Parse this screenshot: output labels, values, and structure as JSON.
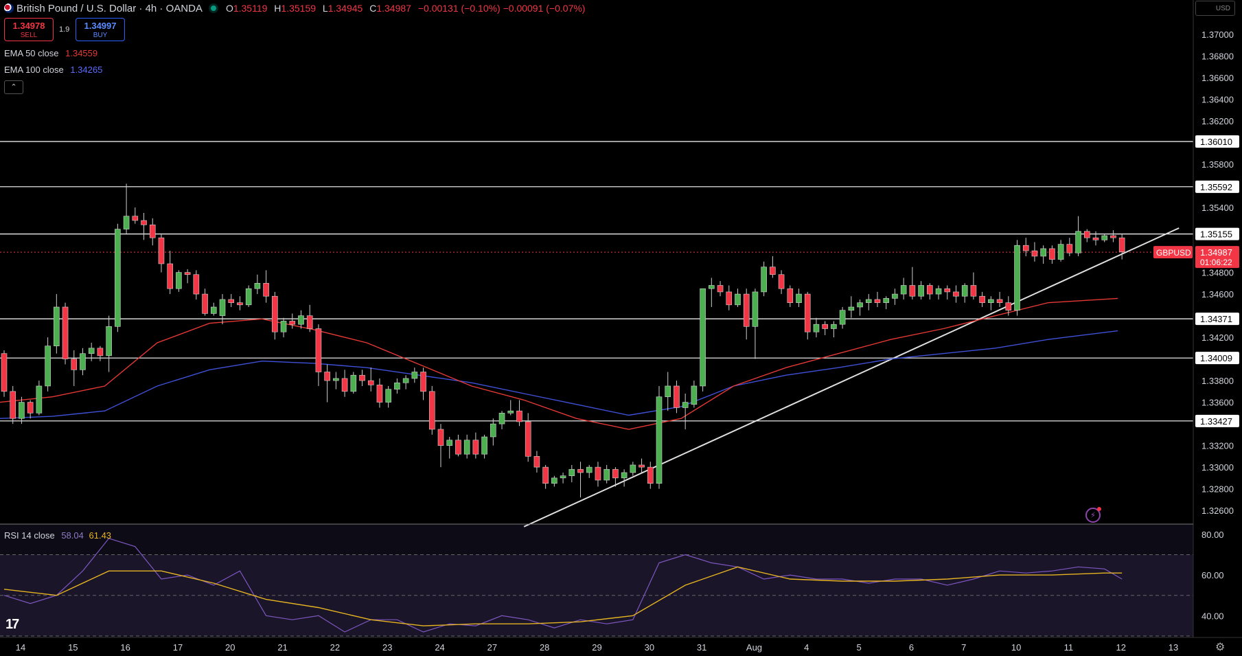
{
  "header": {
    "title": "British Pound / U.S. Dollar · 4h · OANDA",
    "ohlc": [
      {
        "k": "O",
        "v": "1.35119"
      },
      {
        "k": "H",
        "v": "1.35159"
      },
      {
        "k": "L",
        "v": "1.34945"
      },
      {
        "k": "C",
        "v": "1.34987"
      }
    ],
    "change": "−0.00131 (−0.10%) −0.00091 (−0.07%)"
  },
  "trade": {
    "sell_price": "1.34978",
    "sell_label": "SELL",
    "spread": "1.9",
    "buy_price": "1.34997",
    "buy_label": "BUY"
  },
  "indicators": {
    "ema50_label": "EMA 50 close",
    "ema50_value": "1.34559",
    "ema100_label": "EMA 100 close",
    "ema100_value": "1.34265",
    "rsi_label": "RSI 14 close",
    "rsi_value": "58.04",
    "rsi_ma_value": "61.43"
  },
  "currency": "USD",
  "colors": {
    "up": "#4caf50",
    "down": "#f23645",
    "ema50": "#e53935",
    "ema100": "#3f51d8",
    "rsi": "#7e57c2",
    "rsi_ma": "#e6b422",
    "hline": "#ffffff",
    "price_tag": "#f23645"
  },
  "chart_data": {
    "type": "candlestick",
    "symbol": "GBPUSD",
    "last_price": "1.34987",
    "countdown": "01:06:22",
    "ylim": [
      1.3248,
      1.3714
    ],
    "price_ticks": [
      "1.37000",
      "1.36800",
      "1.36600",
      "1.36400",
      "1.36200",
      "1.35800",
      "1.35400",
      "1.34800",
      "1.34600",
      "1.34200",
      "1.33800",
      "1.33600",
      "1.33200",
      "1.33000",
      "1.32800",
      "1.32600"
    ],
    "price_tick_values": [
      1.37,
      1.368,
      1.366,
      1.364,
      1.362,
      1.358,
      1.354,
      1.348,
      1.346,
      1.342,
      1.338,
      1.336,
      1.332,
      1.33,
      1.328,
      1.326
    ],
    "horizontal_levels": [
      1.3601,
      1.35592,
      1.35155,
      1.34371,
      1.34009,
      1.33427
    ],
    "horizontal_level_labels": [
      "1.36010",
      "1.35592",
      "1.35155",
      "1.34371",
      "1.34009",
      "1.33427"
    ],
    "x_labels": [
      "14",
      "15",
      "16",
      "17",
      "20",
      "21",
      "22",
      "23",
      "24",
      "27",
      "28",
      "29",
      "30",
      "31",
      "Aug",
      "4",
      "5",
      "6",
      "7",
      "10",
      "11",
      "12",
      "13"
    ],
    "x_label_index": [
      0,
      6,
      12,
      18,
      24,
      30,
      36,
      42,
      48,
      54,
      60,
      66,
      72,
      78,
      84,
      90,
      96,
      102,
      108,
      114,
      120,
      126,
      132
    ],
    "trendline": [
      {
        "i": 60,
        "p": 1.3245
      },
      {
        "i": 135,
        "p": 1.3521
      }
    ],
    "candles_ohlc": [
      [
        1.3405,
        1.3408,
        1.3365,
        1.337
      ],
      [
        1.337,
        1.3375,
        1.334,
        1.3345
      ],
      [
        1.3345,
        1.3365,
        1.334,
        1.336
      ],
      [
        1.336,
        1.3362,
        1.3345,
        1.335
      ],
      [
        1.335,
        1.338,
        1.3348,
        1.3375
      ],
      [
        1.3375,
        1.342,
        1.337,
        1.3412
      ],
      [
        1.3412,
        1.346,
        1.3405,
        1.3448
      ],
      [
        1.3448,
        1.3452,
        1.3395,
        1.34
      ],
      [
        1.34,
        1.3408,
        1.3375,
        1.339
      ],
      [
        1.339,
        1.341,
        1.3385,
        1.3405
      ],
      [
        1.3405,
        1.3415,
        1.3398,
        1.341
      ],
      [
        1.341,
        1.3412,
        1.3398,
        1.3403
      ],
      [
        1.3403,
        1.344,
        1.3388,
        1.343
      ],
      [
        1.343,
        1.3525,
        1.3425,
        1.352
      ],
      [
        1.352,
        1.3562,
        1.3515,
        1.3532
      ],
      [
        1.3532,
        1.354,
        1.3525,
        1.3528
      ],
      [
        1.3528,
        1.3535,
        1.351,
        1.3524
      ],
      [
        1.3524,
        1.353,
        1.3505,
        1.3512
      ],
      [
        1.3512,
        1.3515,
        1.348,
        1.3488
      ],
      [
        1.3488,
        1.35,
        1.346,
        1.3465
      ],
      [
        1.3465,
        1.3482,
        1.3462,
        1.348
      ],
      [
        1.348,
        1.3483,
        1.347,
        1.3478
      ],
      [
        1.3478,
        1.3482,
        1.3455,
        1.346
      ],
      [
        1.346,
        1.3465,
        1.344,
        1.3442
      ],
      [
        1.3442,
        1.3452,
        1.344,
        1.3448
      ],
      [
        1.344,
        1.346,
        1.3432,
        1.3455
      ],
      [
        1.3455,
        1.346,
        1.3448,
        1.3452
      ],
      [
        1.3452,
        1.3458,
        1.3445,
        1.345
      ],
      [
        1.345,
        1.3468,
        1.3448,
        1.3465
      ],
      [
        1.3465,
        1.3478,
        1.346,
        1.347
      ],
      [
        1.347,
        1.3482,
        1.3452,
        1.3458
      ],
      [
        1.3458,
        1.3462,
        1.3418,
        1.3425
      ],
      [
        1.3425,
        1.3438,
        1.342,
        1.3435
      ],
      [
        1.3435,
        1.3442,
        1.3428,
        1.3432
      ],
      [
        1.3432,
        1.3445,
        1.3428,
        1.344
      ],
      [
        1.344,
        1.345,
        1.3425,
        1.3428
      ],
      [
        1.3428,
        1.3432,
        1.3375,
        1.3388
      ],
      [
        1.3388,
        1.3395,
        1.336,
        1.338
      ],
      [
        1.338,
        1.3388,
        1.3372,
        1.3382
      ],
      [
        1.3382,
        1.339,
        1.3365,
        1.337
      ],
      [
        1.337,
        1.3388,
        1.3368,
        1.3385
      ],
      [
        1.3385,
        1.339,
        1.3375,
        1.338
      ],
      [
        1.338,
        1.3392,
        1.337,
        1.3376
      ],
      [
        1.3376,
        1.3382,
        1.3355,
        1.336
      ],
      [
        1.336,
        1.3375,
        1.3355,
        1.3372
      ],
      [
        1.3372,
        1.3382,
        1.3368,
        1.3378
      ],
      [
        1.3378,
        1.3385,
        1.3372,
        1.3382
      ],
      [
        1.3382,
        1.3392,
        1.3378,
        1.3388
      ],
      [
        1.3388,
        1.3392,
        1.3362,
        1.337
      ],
      [
        1.337,
        1.3375,
        1.333,
        1.3335
      ],
      [
        1.3335,
        1.334,
        1.33,
        1.332
      ],
      [
        1.332,
        1.3328,
        1.3308,
        1.3325
      ],
      [
        1.3325,
        1.333,
        1.331,
        1.3312
      ],
      [
        1.3312,
        1.333,
        1.3308,
        1.3325
      ],
      [
        1.3325,
        1.3332,
        1.3308,
        1.3312
      ],
      [
        1.3312,
        1.333,
        1.3308,
        1.3328
      ],
      [
        1.3328,
        1.3345,
        1.332,
        1.334
      ],
      [
        1.334,
        1.3352,
        1.3335,
        1.335
      ],
      [
        1.335,
        1.3362,
        1.3348,
        1.3352
      ],
      [
        1.3352,
        1.3362,
        1.3338,
        1.3342
      ],
      [
        1.3342,
        1.335,
        1.3305,
        1.331
      ],
      [
        1.331,
        1.3315,
        1.3295,
        1.33
      ],
      [
        1.33,
        1.3302,
        1.328,
        1.3285
      ],
      [
        1.3285,
        1.3292,
        1.3282,
        1.329
      ],
      [
        1.329,
        1.3295,
        1.3285,
        1.3292
      ],
      [
        1.3292,
        1.3302,
        1.3286,
        1.3298
      ],
      [
        1.3298,
        1.3305,
        1.3272,
        1.3295
      ],
      [
        1.3295,
        1.3302,
        1.329,
        1.33
      ],
      [
        1.33,
        1.3305,
        1.3282,
        1.3288
      ],
      [
        1.3288,
        1.3302,
        1.3285,
        1.3298
      ],
      [
        1.3298,
        1.33,
        1.3282,
        1.329
      ],
      [
        1.329,
        1.3298,
        1.3282,
        1.3295
      ],
      [
        1.3295,
        1.3305,
        1.3292,
        1.3302
      ],
      [
        1.3302,
        1.3308,
        1.3295,
        1.33
      ],
      [
        1.33,
        1.3305,
        1.328,
        1.3285
      ],
      [
        1.3285,
        1.3375,
        1.328,
        1.3365
      ],
      [
        1.3365,
        1.3388,
        1.3352,
        1.3375
      ],
      [
        1.3375,
        1.338,
        1.335,
        1.3355
      ],
      [
        1.3355,
        1.3368,
        1.3335,
        1.336
      ],
      [
        1.3358,
        1.338,
        1.3355,
        1.3375
      ],
      [
        1.3375,
        1.3452,
        1.337,
        1.3465
      ],
      [
        1.3465,
        1.3475,
        1.3448,
        1.3468
      ],
      [
        1.3468,
        1.3472,
        1.3458,
        1.3462
      ],
      [
        1.3462,
        1.3468,
        1.3445,
        1.345
      ],
      [
        1.345,
        1.3465,
        1.3448,
        1.346
      ],
      [
        1.346,
        1.3465,
        1.3418,
        1.343
      ],
      [
        1.343,
        1.3465,
        1.34,
        1.3462
      ],
      [
        1.3462,
        1.349,
        1.3458,
        1.3485
      ],
      [
        1.3485,
        1.3495,
        1.3475,
        1.3478
      ],
      [
        1.3478,
        1.3482,
        1.346,
        1.3465
      ],
      [
        1.3465,
        1.3468,
        1.3448,
        1.3452
      ],
      [
        1.3452,
        1.3465,
        1.3448,
        1.346
      ],
      [
        1.346,
        1.3462,
        1.3418,
        1.3425
      ],
      [
        1.3425,
        1.3438,
        1.342,
        1.3432
      ],
      [
        1.3432,
        1.3435,
        1.3422,
        1.3428
      ],
      [
        1.3428,
        1.3435,
        1.342,
        1.3432
      ],
      [
        1.3432,
        1.3448,
        1.3428,
        1.3445
      ],
      [
        1.3445,
        1.3458,
        1.3438,
        1.3448
      ],
      [
        1.3448,
        1.3455,
        1.344,
        1.3452
      ],
      [
        1.3452,
        1.346,
        1.3445,
        1.3455
      ],
      [
        1.3455,
        1.3462,
        1.3448,
        1.3452
      ],
      [
        1.3452,
        1.3458,
        1.3446,
        1.3456
      ],
      [
        1.3456,
        1.3465,
        1.345,
        1.346
      ],
      [
        1.346,
        1.3475,
        1.3455,
        1.3468
      ],
      [
        1.3468,
        1.3485,
        1.3455,
        1.3458
      ],
      [
        1.3458,
        1.3472,
        1.3455,
        1.3468
      ],
      [
        1.3468,
        1.347,
        1.3455,
        1.346
      ],
      [
        1.346,
        1.3468,
        1.3455,
        1.3465
      ],
      [
        1.3465,
        1.3468,
        1.3455,
        1.3462
      ],
      [
        1.3462,
        1.3468,
        1.3452,
        1.3458
      ],
      [
        1.3458,
        1.347,
        1.3452,
        1.3468
      ],
      [
        1.3468,
        1.348,
        1.3455,
        1.3458
      ],
      [
        1.3458,
        1.3462,
        1.3448,
        1.3452
      ],
      [
        1.3452,
        1.3458,
        1.3445,
        1.3455
      ],
      [
        1.3455,
        1.3462,
        1.3448,
        1.3452
      ],
      [
        1.3452,
        1.3458,
        1.344,
        1.3445
      ],
      [
        1.3445,
        1.351,
        1.344,
        1.3505
      ],
      [
        1.3505,
        1.3512,
        1.3495,
        1.35
      ],
      [
        1.35,
        1.3508,
        1.349,
        1.3495
      ],
      [
        1.3495,
        1.3505,
        1.3488,
        1.3502
      ],
      [
        1.3502,
        1.3505,
        1.3488,
        1.3492
      ],
      [
        1.3492,
        1.351,
        1.349,
        1.3506
      ],
      [
        1.3506,
        1.3512,
        1.3495,
        1.3498
      ],
      [
        1.3498,
        1.3532,
        1.3495,
        1.3518
      ],
      [
        1.3518,
        1.352,
        1.3508,
        1.3512
      ],
      [
        1.3512,
        1.3518,
        1.3505,
        1.351
      ],
      [
        1.351,
        1.3516,
        1.3508,
        1.3514
      ],
      [
        1.3514,
        1.3519,
        1.3508,
        1.3512
      ],
      [
        1.3512,
        1.3516,
        1.3492,
        1.3499
      ]
    ],
    "ema50": [
      [
        0,
        1.336
      ],
      [
        6,
        1.3365
      ],
      [
        12,
        1.3375
      ],
      [
        18,
        1.3415
      ],
      [
        24,
        1.3433
      ],
      [
        30,
        1.3437
      ],
      [
        36,
        1.3427
      ],
      [
        42,
        1.3415
      ],
      [
        48,
        1.3395
      ],
      [
        54,
        1.3375
      ],
      [
        60,
        1.3362
      ],
      [
        66,
        1.3345
      ],
      [
        72,
        1.3335
      ],
      [
        78,
        1.3345
      ],
      [
        84,
        1.3375
      ],
      [
        90,
        1.3392
      ],
      [
        96,
        1.3405
      ],
      [
        102,
        1.3418
      ],
      [
        108,
        1.3428
      ],
      [
        114,
        1.344
      ],
      [
        120,
        1.3452
      ],
      [
        128,
        1.3456
      ]
    ],
    "ema100": [
      [
        0,
        1.3345
      ],
      [
        6,
        1.3347
      ],
      [
        12,
        1.3352
      ],
      [
        18,
        1.3375
      ],
      [
        24,
        1.339
      ],
      [
        30,
        1.3398
      ],
      [
        36,
        1.3396
      ],
      [
        42,
        1.3392
      ],
      [
        48,
        1.3385
      ],
      [
        54,
        1.3378
      ],
      [
        60,
        1.3368
      ],
      [
        66,
        1.3358
      ],
      [
        72,
        1.3348
      ],
      [
        78,
        1.3356
      ],
      [
        84,
        1.3375
      ],
      [
        90,
        1.3385
      ],
      [
        96,
        1.3392
      ],
      [
        102,
        1.34
      ],
      [
        108,
        1.3405
      ],
      [
        114,
        1.341
      ],
      [
        120,
        1.3418
      ],
      [
        128,
        1.3426
      ]
    ],
    "rsi": {
      "ylim": [
        32,
        82
      ],
      "ticks": [
        "80.00",
        "60.00",
        "40.00"
      ],
      "tick_values": [
        80,
        60,
        40
      ],
      "bands": [
        70,
        50,
        30
      ],
      "rsi14": [
        [
          0,
          50
        ],
        [
          3,
          46
        ],
        [
          6,
          50
        ],
        [
          9,
          62
        ],
        [
          12,
          78
        ],
        [
          15,
          74
        ],
        [
          18,
          58
        ],
        [
          21,
          60
        ],
        [
          24,
          55
        ],
        [
          27,
          62
        ],
        [
          30,
          40
        ],
        [
          33,
          38
        ],
        [
          36,
          40
        ],
        [
          39,
          32
        ],
        [
          42,
          38
        ],
        [
          45,
          38
        ],
        [
          48,
          32
        ],
        [
          51,
          36
        ],
        [
          54,
          35
        ],
        [
          57,
          40
        ],
        [
          60,
          38
        ],
        [
          63,
          34
        ],
        [
          66,
          38
        ],
        [
          69,
          36
        ],
        [
          72,
          38
        ],
        [
          75,
          66
        ],
        [
          78,
          70
        ],
        [
          81,
          66
        ],
        [
          84,
          64
        ],
        [
          87,
          58
        ],
        [
          90,
          60
        ],
        [
          93,
          58
        ],
        [
          96,
          58
        ],
        [
          99,
          56
        ],
        [
          102,
          58
        ],
        [
          105,
          58
        ],
        [
          108,
          55
        ],
        [
          111,
          58
        ],
        [
          114,
          62
        ],
        [
          117,
          61
        ],
        [
          120,
          62
        ],
        [
          123,
          64
        ],
        [
          126,
          63
        ],
        [
          128,
          58
        ]
      ],
      "rsi_ma": [
        [
          0,
          53
        ],
        [
          6,
          50
        ],
        [
          12,
          62
        ],
        [
          18,
          62
        ],
        [
          24,
          56
        ],
        [
          30,
          48
        ],
        [
          36,
          44
        ],
        [
          42,
          38
        ],
        [
          48,
          35
        ],
        [
          54,
          36
        ],
        [
          60,
          36
        ],
        [
          66,
          37
        ],
        [
          72,
          40
        ],
        [
          78,
          55
        ],
        [
          84,
          64
        ],
        [
          90,
          58
        ],
        [
          96,
          57
        ],
        [
          102,
          57
        ],
        [
          108,
          58
        ],
        [
          114,
          60
        ],
        [
          120,
          60
        ],
        [
          126,
          61
        ],
        [
          128,
          61
        ]
      ]
    }
  }
}
